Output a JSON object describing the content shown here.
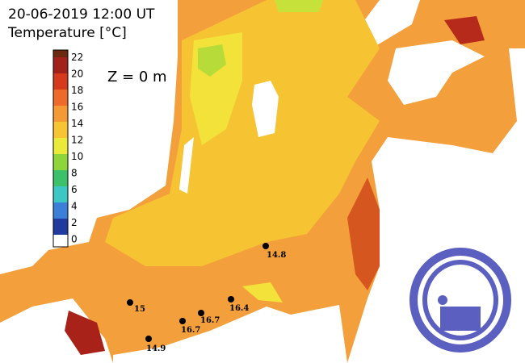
{
  "header": {
    "title": "20-06-2019 12:00 UT",
    "subtitle": "Temperature [°C]"
  },
  "colorbar": {
    "ticks": [
      "22",
      "20",
      "18",
      "16",
      "14",
      "12",
      "10",
      "8",
      "6",
      "4",
      "2",
      "0"
    ]
  },
  "depth_label": "Z = 0 m",
  "stations": [
    {
      "label": "14.8"
    },
    {
      "label": "15"
    },
    {
      "label": "16.7"
    },
    {
      "label": "16.7"
    },
    {
      "label": "16.4"
    },
    {
      "label": "14.9"
    }
  ]
}
